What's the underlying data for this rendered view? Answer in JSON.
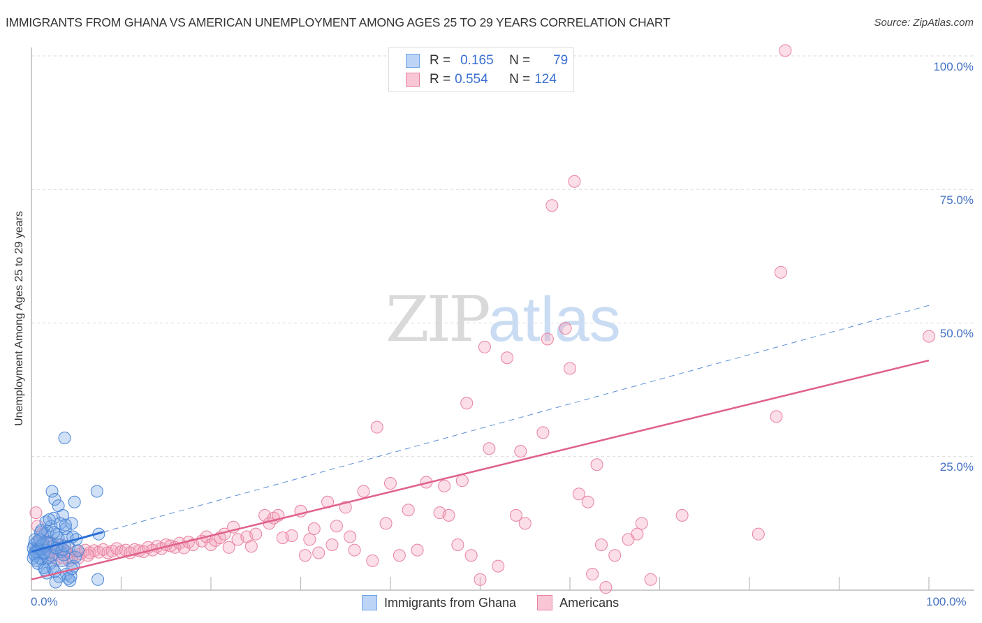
{
  "header": {
    "title": "IMMIGRANTS FROM GHANA VS AMERICAN UNEMPLOYMENT AMONG AGES 25 TO 29 YEARS CORRELATION CHART",
    "source": "Source: ZipAtlas.com"
  },
  "watermark": {
    "zip": "ZIP",
    "atlas": "atlas"
  },
  "axes": {
    "ylabel": "Unemployment Among Ages 25 to 29 years",
    "y_ticks": [
      "100.0%",
      "75.0%",
      "50.0%",
      "25.0%"
    ],
    "x_ticks": {
      "left": "0.0%",
      "right": "100.0%"
    }
  },
  "legend": {
    "series": [
      {
        "r_label": "R =",
        "r_value": "0.165",
        "n_label": "N =",
        "n_value": "79",
        "color": "#6fa3e8",
        "fill": "#bcd4f5"
      },
      {
        "r_label": "R =",
        "r_value": "0.554",
        "n_label": "N =",
        "n_value": "124",
        "color": "#e8829f",
        "fill": "#f8c6d5"
      }
    ]
  },
  "bottom_legend": {
    "items": [
      {
        "label": "Immigrants from Ghana",
        "color": "#6fa3e8",
        "fill": "#bcd4f5"
      },
      {
        "label": "Americans",
        "color": "#e8829f",
        "fill": "#f8c6d5"
      }
    ]
  },
  "chart_data": {
    "type": "scatter",
    "title": "IMMIGRANTS FROM GHANA VS AMERICAN UNEMPLOYMENT AMONG AGES 25 TO 29 YEARS CORRELATION CHART",
    "xlabel": "",
    "ylabel": "Unemployment Among Ages 25 to 29 years",
    "xlim": [
      0,
      100
    ],
    "ylim": [
      0,
      100
    ],
    "y_ticks": [
      25,
      50,
      75,
      100
    ],
    "x_tick_labels": [
      "0.0%",
      "100.0%"
    ],
    "grid": "horizontal dashed",
    "legend_position": "top-center and bottom",
    "series": [
      {
        "name": "Immigrants from Ghana",
        "color": "#4a86d8",
        "R": 0.165,
        "N": 79,
        "trend": {
          "x0": 0,
          "y0": 7.2,
          "x1": 100,
          "y1": 53.3,
          "solid_until_x": 8
        },
        "points": [
          [
            0.3,
            8.5
          ],
          [
            0.5,
            7.5
          ],
          [
            0.4,
            6.5
          ],
          [
            0.6,
            7.0
          ],
          [
            0.8,
            8.0
          ],
          [
            1.0,
            7.2
          ],
          [
            1.2,
            6.8
          ],
          [
            0.2,
            7.8
          ],
          [
            0.7,
            9.2
          ],
          [
            1.5,
            10.5
          ],
          [
            1.8,
            11.0
          ],
          [
            2.0,
            9.0
          ],
          [
            2.2,
            12.0
          ],
          [
            2.5,
            13.5
          ],
          [
            2.3,
            18.5
          ],
          [
            2.6,
            17.0
          ],
          [
            3.0,
            15.8
          ],
          [
            3.5,
            14.0
          ],
          [
            3.2,
            12.5
          ],
          [
            2.8,
            10.5
          ],
          [
            3.8,
            11.5
          ],
          [
            4.0,
            10.0
          ],
          [
            4.5,
            12.5
          ],
          [
            4.8,
            16.5
          ],
          [
            4.6,
            10.0
          ],
          [
            5.0,
            9.5
          ],
          [
            3.7,
            28.5
          ],
          [
            7.3,
            18.5
          ],
          [
            7.5,
            10.5
          ],
          [
            2.9,
            8.5
          ],
          [
            1.3,
            8.8
          ],
          [
            1.6,
            7.5
          ],
          [
            1.9,
            6.2
          ],
          [
            2.1,
            5.0
          ],
          [
            1.4,
            4.2
          ],
          [
            1.7,
            3.2
          ],
          [
            2.4,
            4.0
          ],
          [
            3.1,
            2.5
          ],
          [
            3.4,
            5.5
          ],
          [
            3.9,
            3.0
          ],
          [
            4.1,
            2.2
          ],
          [
            4.3,
            1.8
          ],
          [
            4.4,
            2.6
          ],
          [
            2.7,
            1.5
          ],
          [
            1.1,
            5.8
          ],
          [
            0.9,
            6.0
          ],
          [
            0.6,
            5.5
          ],
          [
            0.4,
            9.5
          ],
          [
            1.0,
            10.8
          ],
          [
            1.6,
            12.8
          ],
          [
            2.0,
            13.2
          ],
          [
            2.4,
            8.2
          ],
          [
            3.3,
            7.2
          ],
          [
            3.6,
            6.6
          ],
          [
            4.2,
            8.0
          ],
          [
            0.8,
            7.6
          ],
          [
            1.2,
            8.4
          ],
          [
            0.3,
            6.8
          ],
          [
            0.5,
            7.1
          ],
          [
            0.2,
            6.0
          ],
          [
            1.5,
            3.8
          ],
          [
            2.6,
            3.5
          ],
          [
            3.0,
            9.8
          ],
          [
            4.7,
            4.5
          ],
          [
            7.4,
            2.0
          ],
          [
            3.5,
            7.6
          ],
          [
            2.2,
            6.5
          ],
          [
            1.8,
            8.8
          ],
          [
            0.9,
            9.5
          ],
          [
            0.7,
            5.0
          ],
          [
            1.4,
            7.0
          ],
          [
            2.8,
            7.9
          ],
          [
            3.7,
            8.3
          ],
          [
            4.9,
            6.2
          ],
          [
            5.2,
            7.4
          ],
          [
            1.1,
            11.2
          ],
          [
            2.5,
            10.8
          ],
          [
            3.8,
            12.2
          ],
          [
            4.5,
            4.0
          ]
        ]
      },
      {
        "name": "Americans",
        "color": "#e06a8e",
        "R": 0.554,
        "N": 124,
        "trend": {
          "x0": 0,
          "y0": 2.0,
          "x1": 100,
          "y1": 43.0
        },
        "points": [
          [
            0.5,
            14.5
          ],
          [
            0.7,
            12.0
          ],
          [
            1.0,
            9.5
          ],
          [
            1.5,
            8.0
          ],
          [
            2.0,
            7.0
          ],
          [
            2.5,
            6.5
          ],
          [
            3.0,
            7.5
          ],
          [
            3.5,
            6.0
          ],
          [
            4.0,
            7.0
          ],
          [
            4.5,
            6.2
          ],
          [
            5.0,
            7.3
          ],
          [
            5.5,
            6.8
          ],
          [
            6.0,
            7.5
          ],
          [
            6.5,
            7.0
          ],
          [
            7.0,
            7.4
          ],
          [
            7.5,
            7.1
          ],
          [
            8.0,
            7.6
          ],
          [
            8.5,
            7.0
          ],
          [
            9.0,
            7.3
          ],
          [
            9.5,
            7.8
          ],
          [
            10.0,
            7.2
          ],
          [
            10.5,
            7.5
          ],
          [
            11.0,
            7.0
          ],
          [
            11.5,
            7.6
          ],
          [
            12.0,
            7.4
          ],
          [
            12.5,
            7.2
          ],
          [
            13.0,
            8.0
          ],
          [
            13.5,
            7.5
          ],
          [
            14.0,
            8.2
          ],
          [
            14.5,
            7.8
          ],
          [
            15.0,
            8.5
          ],
          [
            15.5,
            8.3
          ],
          [
            16.0,
            8.0
          ],
          [
            16.5,
            8.8
          ],
          [
            17.0,
            7.9
          ],
          [
            17.5,
            9.0
          ],
          [
            18.0,
            8.5
          ],
          [
            19.0,
            9.2
          ],
          [
            19.5,
            10.0
          ],
          [
            20.0,
            8.5
          ],
          [
            20.5,
            9.3
          ],
          [
            21.0,
            9.8
          ],
          [
            21.5,
            10.5
          ],
          [
            22.0,
            8.0
          ],
          [
            22.5,
            11.8
          ],
          [
            23.0,
            9.5
          ],
          [
            24.0,
            10.0
          ],
          [
            24.5,
            8.2
          ],
          [
            25.0,
            10.5
          ],
          [
            26.0,
            14.0
          ],
          [
            26.5,
            12.5
          ],
          [
            27.0,
            13.5
          ],
          [
            28.0,
            9.8
          ],
          [
            29.0,
            10.2
          ],
          [
            30.0,
            14.8
          ],
          [
            30.5,
            6.5
          ],
          [
            31.5,
            11.5
          ],
          [
            31.0,
            9.5
          ],
          [
            32.0,
            7.0
          ],
          [
            33.0,
            16.5
          ],
          [
            33.5,
            8.5
          ],
          [
            34.0,
            12.0
          ],
          [
            35.0,
            15.5
          ],
          [
            35.5,
            10.0
          ],
          [
            36.0,
            7.5
          ],
          [
            37.0,
            18.5
          ],
          [
            38.5,
            30.5
          ],
          [
            38.0,
            5.5
          ],
          [
            39.5,
            12.5
          ],
          [
            40.0,
            20.0
          ],
          [
            41.0,
            6.5
          ],
          [
            42.0,
            15.0
          ],
          [
            43.0,
            7.5
          ],
          [
            44.0,
            20.2
          ],
          [
            45.5,
            14.5
          ],
          [
            46.0,
            19.5
          ],
          [
            46.5,
            14.0
          ],
          [
            47.5,
            8.5
          ],
          [
            48.0,
            20.5
          ],
          [
            48.5,
            35.0
          ],
          [
            49.0,
            6.5
          ],
          [
            50.0,
            2.0
          ],
          [
            50.5,
            45.5
          ],
          [
            51.0,
            26.5
          ],
          [
            52.0,
            4.5
          ],
          [
            53.0,
            43.5
          ],
          [
            54.0,
            14.0
          ],
          [
            54.5,
            26.0
          ],
          [
            55.0,
            12.5
          ],
          [
            57.0,
            29.5
          ],
          [
            57.5,
            47.0
          ],
          [
            58.0,
            72.0
          ],
          [
            59.5,
            49.0
          ],
          [
            60.5,
            76.5
          ],
          [
            60.0,
            41.5
          ],
          [
            61.0,
            18.0
          ],
          [
            62.0,
            16.5
          ],
          [
            62.5,
            3.0
          ],
          [
            63.0,
            23.5
          ],
          [
            63.5,
            8.5
          ],
          [
            65.0,
            6.5
          ],
          [
            66.5,
            9.5
          ],
          [
            67.5,
            10.5
          ],
          [
            68.0,
            12.5
          ],
          [
            69.0,
            2.0
          ],
          [
            72.5,
            14.0
          ],
          [
            81.0,
            10.5
          ],
          [
            83.0,
            32.5
          ],
          [
            83.5,
            59.5
          ],
          [
            84.0,
            101.0
          ],
          [
            100.0,
            47.5
          ],
          [
            1.2,
            10.5
          ],
          [
            2.8,
            5.8
          ],
          [
            3.3,
            8.5
          ],
          [
            4.2,
            5.5
          ],
          [
            1.8,
            6.0
          ],
          [
            2.3,
            8.8
          ],
          [
            5.2,
            6.0
          ],
          [
            6.3,
            6.5
          ],
          [
            0.9,
            7.8
          ],
          [
            1.6,
            9.0
          ],
          [
            3.8,
            7.3
          ],
          [
            27.5,
            14.0
          ],
          [
            64.0,
            0.5
          ]
        ]
      }
    ]
  }
}
